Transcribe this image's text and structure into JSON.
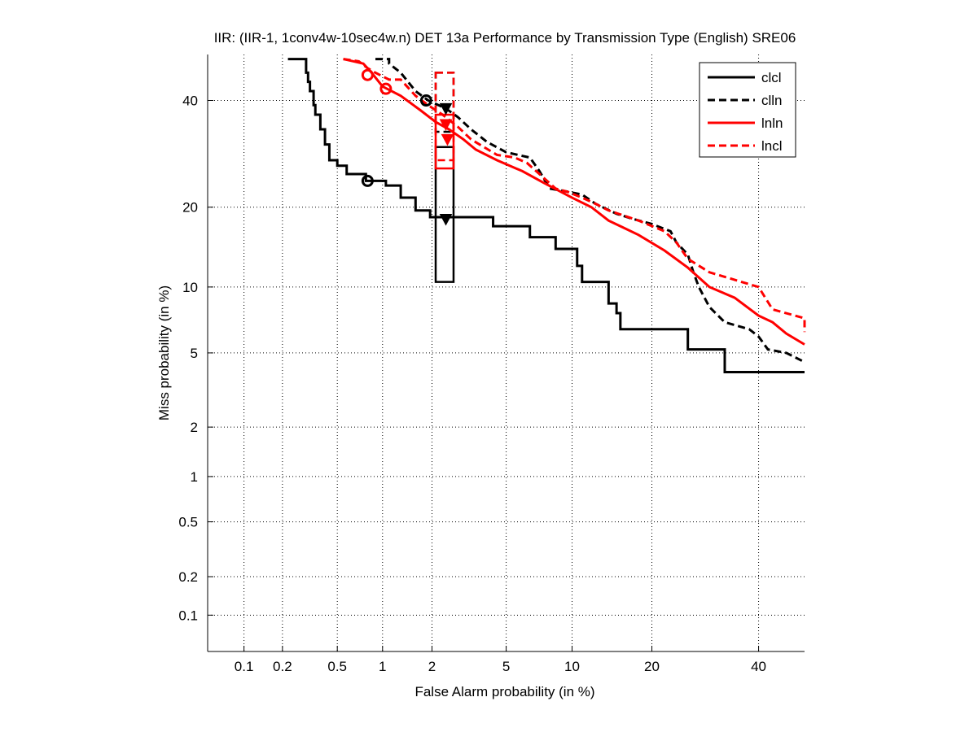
{
  "chart_data": {
    "type": "line",
    "title": "IIR: (IIR-1, 1conv4w-10sec4w.n) DET 13a Performance by Transmission Type (English) SRE06",
    "xlabel": "False Alarm probability (in %)",
    "ylabel": "Miss probability (in %)",
    "x_scale": "normal-deviate",
    "y_scale": "normal-deviate",
    "xlim": [
      0.05,
      50
    ],
    "ylim": [
      0.05,
      50
    ],
    "x_ticks": [
      0.1,
      0.2,
      0.5,
      1,
      2,
      5,
      10,
      20,
      40
    ],
    "x_tick_labels": [
      "0.1",
      "0.2",
      "0.5",
      "1",
      "2",
      "5",
      "10",
      "20",
      "40"
    ],
    "y_ticks": [
      0.1,
      0.2,
      0.5,
      1,
      2,
      5,
      10,
      20,
      40
    ],
    "y_tick_labels": [
      "0.1",
      "0.2",
      "0.5",
      "1",
      "2",
      "5",
      "10",
      "20",
      "40"
    ],
    "grid": true,
    "legend_position": "top-right",
    "series": [
      {
        "name": "clcl",
        "color": "#000000",
        "dash": "solid",
        "points": [
          [
            0.22,
            49
          ],
          [
            0.3,
            49
          ],
          [
            0.3,
            46
          ],
          [
            0.31,
            46
          ],
          [
            0.31,
            44
          ],
          [
            0.32,
            44
          ],
          [
            0.32,
            42
          ],
          [
            0.34,
            42
          ],
          [
            0.34,
            39
          ],
          [
            0.35,
            39
          ],
          [
            0.35,
            37
          ],
          [
            0.38,
            37
          ],
          [
            0.38,
            34
          ],
          [
            0.41,
            34
          ],
          [
            0.41,
            31
          ],
          [
            0.44,
            31
          ],
          [
            0.44,
            28
          ],
          [
            0.5,
            28
          ],
          [
            0.5,
            27
          ],
          [
            0.58,
            27
          ],
          [
            0.58,
            25.5
          ],
          [
            0.78,
            25.5
          ],
          [
            0.78,
            24.3
          ],
          [
            1.05,
            24.3
          ],
          [
            1.05,
            23.5
          ],
          [
            1.3,
            23.5
          ],
          [
            1.3,
            21.5
          ],
          [
            1.6,
            21.5
          ],
          [
            1.6,
            19.5
          ],
          [
            1.95,
            19.5
          ],
          [
            1.95,
            18.5
          ],
          [
            4.3,
            18.5
          ],
          [
            4.3,
            17.2
          ],
          [
            6.5,
            17.2
          ],
          [
            6.5,
            15.7
          ],
          [
            8.5,
            15.7
          ],
          [
            8.5,
            14.2
          ],
          [
            10.5,
            14.2
          ],
          [
            10.5,
            12.2
          ],
          [
            11,
            12.2
          ],
          [
            11,
            10.5
          ],
          [
            14,
            10.5
          ],
          [
            14,
            8.5
          ],
          [
            15,
            8.5
          ],
          [
            15,
            7.7
          ],
          [
            15.5,
            7.7
          ],
          [
            15.5,
            6.5
          ],
          [
            26,
            6.5
          ],
          [
            26,
            5.2
          ],
          [
            33,
            5.2
          ],
          [
            33,
            4.0
          ],
          [
            50,
            4.0
          ]
        ],
        "actual_point": [
          2.4,
          18.2
        ],
        "min_dcf_point": [
          0.8,
          24.3
        ],
        "confidence_box": {
          "x": [
            2.1,
            2.65
          ],
          "y": [
            10.5,
            30.5
          ]
        }
      },
      {
        "name": "clln",
        "color": "#000000",
        "dash": "dashed",
        "points": [
          [
            0.9,
            49
          ],
          [
            1.1,
            49
          ],
          [
            1.1,
            48
          ],
          [
            1.3,
            46
          ],
          [
            1.6,
            42
          ],
          [
            1.9,
            40
          ],
          [
            2.4,
            38.3
          ],
          [
            2.8,
            36.5
          ],
          [
            3.3,
            34
          ],
          [
            4,
            31.5
          ],
          [
            5,
            29.5
          ],
          [
            6.5,
            28.5
          ],
          [
            7.2,
            26
          ],
          [
            8,
            23
          ],
          [
            9.5,
            22.5
          ],
          [
            11,
            22
          ],
          [
            12.5,
            20.5
          ],
          [
            15,
            19
          ],
          [
            17,
            18.3
          ],
          [
            20,
            17.5
          ],
          [
            23,
            16.5
          ],
          [
            24,
            15
          ],
          [
            26,
            13.5
          ],
          [
            27,
            11.5
          ],
          [
            28,
            10
          ],
          [
            30,
            8.2
          ],
          [
            33,
            7.0
          ],
          [
            38,
            6.5
          ],
          [
            40,
            6.0
          ],
          [
            42,
            5.2
          ],
          [
            46,
            5.0
          ],
          [
            50,
            4.5
          ]
        ],
        "actual_point": [
          2.4,
          38.3
        ],
        "min_dcf_point": [
          1.85,
          40.0
        ],
        "confidence_box": {
          "x": [
            2.1,
            2.65
          ],
          "y": [
            33.5,
            46
          ]
        }
      },
      {
        "name": "lnln",
        "color": "#ff0000",
        "dash": "solid",
        "points": [
          [
            0.55,
            49
          ],
          [
            0.75,
            48
          ],
          [
            0.85,
            46
          ],
          [
            1.0,
            43
          ],
          [
            1.3,
            41
          ],
          [
            1.7,
            38
          ],
          [
            2.1,
            35.5
          ],
          [
            2.5,
            34
          ],
          [
            3.0,
            32
          ],
          [
            3.5,
            30
          ],
          [
            4.5,
            28
          ],
          [
            6,
            26
          ],
          [
            7.5,
            24
          ],
          [
            10,
            21.5
          ],
          [
            12,
            20
          ],
          [
            14,
            18
          ],
          [
            18,
            16
          ],
          [
            22,
            14
          ],
          [
            26,
            12
          ],
          [
            30,
            10
          ],
          [
            35,
            9
          ],
          [
            40,
            7.5
          ],
          [
            43,
            7
          ],
          [
            46,
            6.2
          ],
          [
            50,
            5.5
          ]
        ],
        "actual_point": [
          2.45,
          32.0
        ],
        "min_dcf_point": [
          1.05,
          42.5
        ],
        "confidence_box": {
          "x": [
            2.1,
            2.65
          ],
          "y": [
            26.5,
            37
          ]
        }
      },
      {
        "name": "lncl",
        "color": "#ff0000",
        "dash": "dashed",
        "points": [
          [
            0.55,
            49
          ],
          [
            0.7,
            48.5
          ],
          [
            0.8,
            47
          ],
          [
            0.9,
            46
          ],
          [
            1.1,
            44.5
          ],
          [
            1.3,
            44.5
          ],
          [
            1.6,
            41
          ],
          [
            1.9,
            39
          ],
          [
            2.3,
            37
          ],
          [
            2.8,
            34.5
          ],
          [
            3.3,
            32
          ],
          [
            4.5,
            29
          ],
          [
            5.5,
            28.5
          ],
          [
            6.3,
            27.5
          ],
          [
            8.5,
            23
          ],
          [
            9.5,
            22.5
          ],
          [
            11,
            21.5
          ],
          [
            12.5,
            20.5
          ],
          [
            14,
            19.5
          ],
          [
            18,
            18
          ],
          [
            22,
            16.5
          ],
          [
            24,
            15
          ],
          [
            26,
            13
          ],
          [
            30,
            11.5
          ],
          [
            40,
            10
          ],
          [
            43,
            8
          ],
          [
            50,
            7.3
          ],
          [
            50,
            6.3
          ]
        ],
        "actual_point": [
          2.4,
          35.0
        ],
        "min_dcf_point": [
          0.8,
          45.5
        ],
        "confidence_box": {
          "x": [
            2.1,
            2.65
          ],
          "y": [
            28,
            46
          ]
        }
      }
    ]
  }
}
